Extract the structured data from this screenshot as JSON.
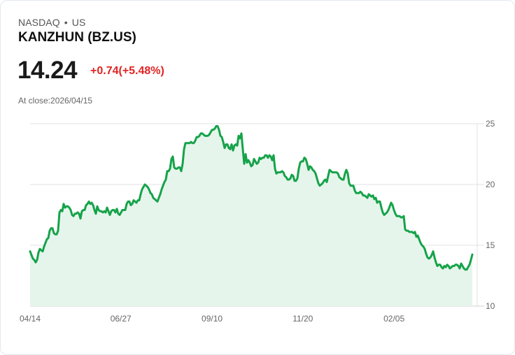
{
  "header": {
    "exchange": "NASDAQ",
    "separator": "•",
    "market": "US",
    "name": "KANZHUN (BZ.US)",
    "price": "14.24",
    "change": "+0.74(+5.48%)",
    "close_label": "At close:2026/04/15"
  },
  "colors": {
    "line": "#16a34a",
    "fill": "#e6f5ec",
    "change_up": "#e02424",
    "grid": "#e2e2e2"
  },
  "chart_data": {
    "type": "area",
    "title": "KANZHUN (BZ.US)",
    "xlabel": "",
    "ylabel": "",
    "ylim": [
      10,
      25
    ],
    "yticks": [
      25,
      20,
      15,
      10
    ],
    "y_axis_position": "right",
    "xtick_labels": [
      "04/14",
      "06/27",
      "09/10",
      "11/20",
      "02/05"
    ],
    "xtick_positions": [
      0,
      0.203,
      0.407,
      0.61,
      0.814
    ],
    "grid": true,
    "legend": null,
    "last_value": 14.24,
    "x_start": 43,
    "x_step": 2,
    "values": [
      14.5,
      14.2,
      13.9,
      13.8,
      13.6,
      13.8,
      14.4,
      14.7,
      14.6,
      14.5,
      14.9,
      15.2,
      15.5,
      15.6,
      16.2,
      16.4,
      16.4,
      16.0,
      15.9,
      15.9,
      16.2,
      17.7,
      17.9,
      17.8,
      18.4,
      18.1,
      18.2,
      18.2,
      18.1,
      17.9,
      17.5,
      17.4,
      17.6,
      17.6,
      17.7,
      17.6,
      17.2,
      17.8,
      17.9,
      17.9,
      18.3,
      18.4,
      18.6,
      18.4,
      18.5,
      18.3,
      17.9,
      17.6,
      18.2,
      17.9,
      17.8,
      17.8,
      17.7,
      17.8,
      17.7,
      18.1,
      17.8,
      17.5,
      17.8,
      17.9,
      17.9,
      17.7,
      18.0,
      17.6,
      17.5,
      17.7,
      17.9,
      17.9,
      17.9,
      18.4,
      18.6,
      18.6,
      18.3,
      18.4,
      18.7,
      18.6,
      18.5,
      18.7,
      18.7,
      19.2,
      19.6,
      19.8,
      20.0,
      19.9,
      19.8,
      19.6,
      19.3,
      19.2,
      18.9,
      18.8,
      18.7,
      18.6,
      18.9,
      19.2,
      19.6,
      19.9,
      20.2,
      20.4,
      21.1,
      21.1,
      21.3,
      22.1,
      22.3,
      21.4,
      21.3,
      21.3,
      21.4,
      21.4,
      21.1,
      21.7,
      22.9,
      23.4,
      23.4,
      23.4,
      23.4,
      23.5,
      23.4,
      23.4,
      23.6,
      23.9,
      23.9,
      24.0,
      24.2,
      24.2,
      24.1,
      24.0,
      24.0,
      24.0,
      24.1,
      24.3,
      24.5,
      24.5,
      24.6,
      24.8,
      24.8,
      24.5,
      24.0,
      23.9,
      23.5,
      23.0,
      23.3,
      23.3,
      23.0,
      22.9,
      23.3,
      22.8,
      23.2,
      23.3,
      23.2,
      24.0,
      23.8,
      24.2,
      22.9,
      21.7,
      22.5,
      21.8,
      22.0,
      21.8,
      21.5,
      21.6,
      22.1,
      21.9,
      21.7,
      21.8,
      22.2,
      22.1,
      22.2,
      22.2,
      22.4,
      22.4,
      22.2,
      22.4,
      22.3,
      22.0,
      22.4,
      21.3,
      20.9,
      21.0,
      21.0,
      21.0,
      21.1,
      21.0,
      20.7,
      20.6,
      20.4,
      20.4,
      20.5,
      20.8,
      20.7,
      20.3,
      20.3,
      20.5,
      21.3,
      21.8,
      21.9,
      21.9,
      22.2,
      22.1,
      21.7,
      21.2,
      21.5,
      21.4,
      21.2,
      21.1,
      20.9,
      20.5,
      20.1,
      19.9,
      20.0,
      20.1,
      20.3,
      20.4,
      20.2,
      20.7,
      21.2,
      21.1,
      21.0,
      21.0,
      21.0,
      21.0,
      20.9,
      20.6,
      20.5,
      20.4,
      20.4,
      20.9,
      21.2,
      20.9,
      20.1,
      19.9,
      19.9,
      19.9,
      19.5,
      19.3,
      19.3,
      19.3,
      19.4,
      19.3,
      19.1,
      19.1,
      19.0,
      18.9,
      19.2,
      19.1,
      19.0,
      19.1,
      18.8,
      18.9,
      18.5,
      18.6,
      18.6,
      18.1,
      17.7,
      17.5,
      17.6,
      17.7,
      17.9,
      18.2,
      18.5,
      18.3,
      17.9,
      17.6,
      17.4,
      17.4,
      17.4,
      17.3,
      17.3,
      17.4,
      16.3,
      16.2,
      16.2,
      16.1,
      16.1,
      16.1,
      16.0,
      16.1,
      15.7,
      15.8,
      15.5,
      15.2,
      15.0,
      14.9,
      14.7,
      14.3,
      14.0,
      13.9,
      14.0,
      14.2,
      14.5,
      14.0,
      13.6,
      13.3,
      13.4,
      13.4,
      13.2,
      13.1,
      13.3,
      13.2,
      13.4,
      13.3,
      13.1,
      13.2,
      13.3,
      13.3,
      13.4,
      13.4,
      13.3,
      13.1,
      13.5,
      13.3,
      13.1,
      13.0,
      13.0,
      13.2,
      13.4,
      13.8,
      14.24
    ]
  }
}
